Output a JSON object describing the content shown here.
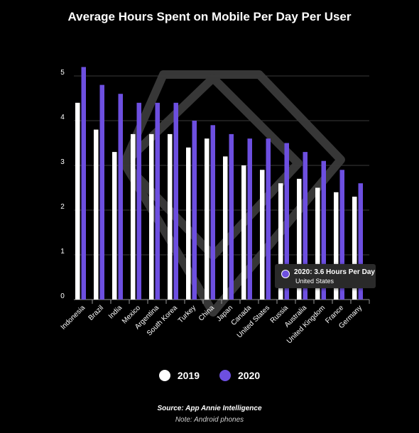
{
  "colors": {
    "background": "#000000",
    "series_2019": "#ffffff",
    "series_2020": "#6d4fe0",
    "grid": "#3a3a3a",
    "watermark": "#3d3d3d"
  },
  "chart_data": {
    "type": "bar",
    "title": "Average Hours Spent on Mobile Per Day Per User",
    "xlabel": "",
    "ylabel": "",
    "ylim": [
      0,
      5
    ],
    "yticks": [
      0,
      1,
      2,
      3,
      4,
      5
    ],
    "grid": true,
    "legend_position": "bottom",
    "categories": [
      "Indonesia",
      "Brazil",
      "India",
      "Mexico",
      "Argentina",
      "South Korea",
      "Turkey",
      "China",
      "Japan",
      "Canada",
      "United States",
      "Russia",
      "Australia",
      "United Kingdom",
      "France",
      "Germany"
    ],
    "series": [
      {
        "name": "2019",
        "color": "#ffffff",
        "values": [
          4.4,
          3.8,
          3.3,
          3.7,
          3.7,
          3.7,
          3.4,
          3.6,
          3.2,
          3.0,
          2.9,
          2.6,
          2.7,
          2.5,
          2.4,
          2.3
        ]
      },
      {
        "name": "2020",
        "color": "#6d4fe0",
        "values": [
          5.2,
          4.8,
          4.6,
          4.4,
          4.4,
          4.4,
          4.0,
          3.9,
          3.7,
          3.6,
          3.6,
          3.5,
          3.3,
          3.1,
          2.9,
          2.6
        ]
      }
    ],
    "tooltip": {
      "title": "2020: 3.6 Hours Per Day",
      "subtitle": "United States"
    }
  },
  "legend": {
    "items": [
      {
        "label": "2019",
        "color": "#ffffff"
      },
      {
        "label": "2020",
        "color": "#6d4fe0"
      }
    ]
  },
  "footer": {
    "source": "Source: App Annie Intelligence",
    "note": "Note: Android phones"
  }
}
